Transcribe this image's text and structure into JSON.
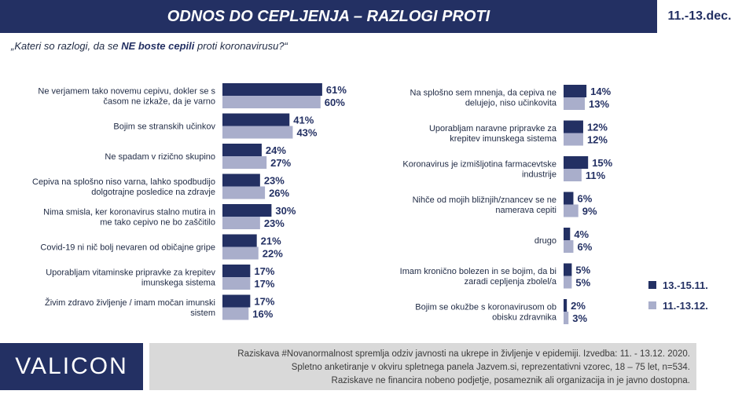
{
  "header": {
    "title": "ODNOS DO CEPLJENJA – RAZLOGI PROTI",
    "date": "11.-13.dec."
  },
  "question": {
    "prefix": "„Kateri so razlogi, da se ",
    "emphasis": "NE boste cepili",
    "suffix": " proti koronavirusu?“"
  },
  "colors": {
    "series_1": "#233063",
    "series_2": "#a9aecb",
    "header_bg": "#233063",
    "footer_bg": "#d9d9d9"
  },
  "legend": {
    "items": [
      {
        "label": "13.-15.11.",
        "color": "#233063"
      },
      {
        "label": "11.-13.12.",
        "color": "#a9aecb"
      }
    ]
  },
  "chart_data": [
    {
      "type": "bar",
      "orientation": "horizontal",
      "series_names": [
        "13.-15.11.",
        "11.-13.12."
      ],
      "categories": [
        [
          "Ne verjamem tako novemu cepivu, dokler se s",
          "časom ne izkaže, da je varno"
        ],
        [
          "Bojim se stranskih učinkov"
        ],
        [
          "Ne spadam v rizično skupino"
        ],
        [
          "Cepiva na splošno niso varna, lahko spodbudijo",
          "dolgotrajne posledice na zdravje"
        ],
        [
          "Nima smisla, ker koronavirus stalno mutira in",
          "me tako cepivo ne bo zaščitilo"
        ],
        [
          "Covid-19 ni nič bolj nevaren od običajne gripe"
        ],
        [
          "Uporabljam vitaminske pripravke za krepitev",
          "imunskega sistema"
        ],
        [
          "Živim zdravo življenje / imam močan imunski",
          "sistem"
        ]
      ],
      "series": [
        {
          "values": [
            61,
            41,
            24,
            23,
            30,
            21,
            17,
            17
          ]
        },
        {
          "values": [
            60,
            43,
            27,
            26,
            23,
            22,
            17,
            16
          ]
        }
      ],
      "value_labels": [
        [
          "61%",
          "41%",
          "24%",
          "23%",
          "30%",
          "21%",
          "17%",
          "17%"
        ],
        [
          "60%",
          "43%",
          "27%",
          "26%",
          "23%",
          "22%",
          "17%",
          "16%"
        ]
      ],
      "xlim": [
        0,
        100
      ],
      "grid": false
    },
    {
      "type": "bar",
      "orientation": "horizontal",
      "series_names": [
        "13.-15.11.",
        "11.-13.12."
      ],
      "categories": [
        [
          "Na splošno sem mnenja, da cepiva ne",
          "delujejo, niso učinkovita"
        ],
        [
          "Uporabljam naravne pripravke za",
          "krepitev imunskega sistema"
        ],
        [
          "Koronavirus je izmišljotina farmacevtske",
          "industrije"
        ],
        [
          "Nihče od mojih bližnjih/znancev se ne",
          "namerava cepiti"
        ],
        [
          "drugo"
        ],
        [
          "Imam kronično bolezen in se bojim, da bi",
          "zaradi cepljenja zbolel/a"
        ],
        [
          "Bojim se okužbe s koronavirusom ob",
          "obisku zdravnika"
        ]
      ],
      "series": [
        {
          "values": [
            14,
            12,
            15,
            6,
            4,
            5,
            2
          ]
        },
        {
          "values": [
            13,
            12,
            11,
            9,
            6,
            5,
            3
          ]
        }
      ],
      "value_labels": [
        [
          "14%",
          "12%",
          "15%",
          "6%",
          "4%",
          "5%",
          "2%"
        ],
        [
          "13%",
          "12%",
          "11%",
          "9%",
          "6%",
          "5%",
          "3%"
        ]
      ],
      "xlim": [
        0,
        100
      ],
      "grid": false
    }
  ],
  "footer": {
    "logo": "VALICON",
    "lines": [
      "Raziskava #Novanormalnost spremlja odziv javnosti na ukrepe in življenje v epidemiji. Izvedba: 11. - 13.12. 2020.",
      "Spletno anketiranje v okviru spletnega panela Jazvem.si, reprezentativni vzorec, 18 – 75 let, n=534.",
      "Raziskave ne financira nobeno podjetje, posameznik ali organizacija in je javno dostopna."
    ]
  }
}
